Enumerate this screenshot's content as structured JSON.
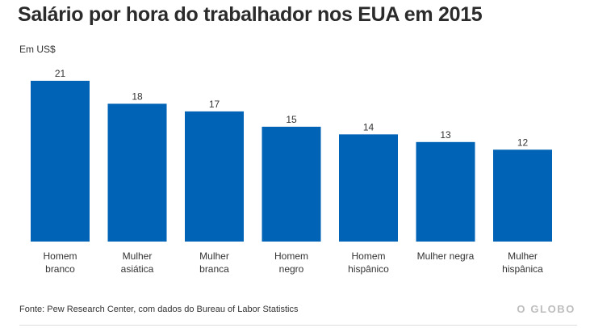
{
  "header": {
    "title": "Salário por hora do trabalhador nos EUA em 2015",
    "unit": "Em US$"
  },
  "footer": {
    "source": "Fonte: Pew Research Center, com dados do Bureau of Labor Statistics",
    "brand": "O GLOBO"
  },
  "colors": {
    "bar": "#0063b5",
    "text": "#333333"
  },
  "chart_data": {
    "type": "bar",
    "title": "Salário por hora do trabalhador nos EUA em 2015",
    "ylabel": "Em US$",
    "xlabel": "",
    "categories": [
      [
        "Homem",
        "branco"
      ],
      [
        "Mulher",
        "asiática"
      ],
      [
        "Mulher",
        "branca"
      ],
      [
        "Homem",
        "negro"
      ],
      [
        "Homem",
        "hispânico"
      ],
      [
        "Mulher negra"
      ],
      [
        "Mulher",
        "hispânica"
      ]
    ],
    "values": [
      21,
      18,
      17,
      15,
      14,
      13,
      12
    ],
    "ylim": [
      0,
      21
    ],
    "grid": false,
    "data_labels": true
  }
}
